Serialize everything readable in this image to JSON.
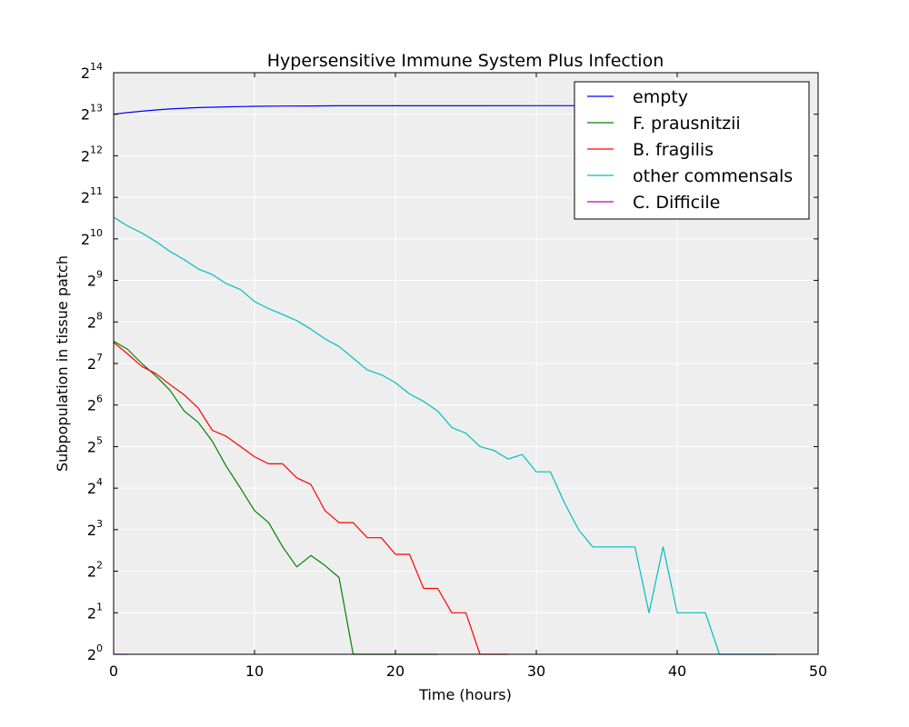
{
  "chart_data": {
    "type": "line",
    "title": "Hypersensitive Immune System Plus Infection",
    "xlabel": "Time (hours)",
    "ylabel": "Subpopulation in tissue patch",
    "xlim": [
      0,
      50
    ],
    "ylim_log2": [
      0,
      14
    ],
    "y_scale": "log2",
    "grid": true,
    "legend_position": "top-right",
    "x_ticks": [
      "0",
      "10",
      "20",
      "30",
      "40",
      "50"
    ],
    "y_ticks": [
      {
        "base": "2",
        "exp": "0"
      },
      {
        "base": "2",
        "exp": "1"
      },
      {
        "base": "2",
        "exp": "2"
      },
      {
        "base": "2",
        "exp": "3"
      },
      {
        "base": "2",
        "exp": "4"
      },
      {
        "base": "2",
        "exp": "5"
      },
      {
        "base": "2",
        "exp": "6"
      },
      {
        "base": "2",
        "exp": "7"
      },
      {
        "base": "2",
        "exp": "8"
      },
      {
        "base": "2",
        "exp": "9"
      },
      {
        "base": "2",
        "exp": "10"
      },
      {
        "base": "2",
        "exp": "11"
      },
      {
        "base": "2",
        "exp": "12"
      },
      {
        "base": "2",
        "exp": "13"
      },
      {
        "base": "2",
        "exp": "14"
      }
    ],
    "series": [
      {
        "name": "empty",
        "color": "#0000ff",
        "points": [
          [
            0,
            8192
          ],
          [
            1,
            8420
          ],
          [
            2,
            8620
          ],
          [
            3,
            8800
          ],
          [
            4,
            8950
          ],
          [
            5,
            9060
          ],
          [
            6,
            9150
          ],
          [
            7,
            9210
          ],
          [
            8,
            9270
          ],
          [
            9,
            9310
          ],
          [
            10,
            9350
          ],
          [
            12,
            9390
          ],
          [
            14,
            9410
          ],
          [
            16,
            9430
          ],
          [
            20,
            9440
          ],
          [
            30,
            9445
          ],
          [
            33,
            9445
          ]
        ]
      },
      {
        "name": "F. prausnitzii",
        "color": "#008000",
        "points": [
          [
            0,
            186
          ],
          [
            1,
            162
          ],
          [
            2,
            128
          ],
          [
            3,
            104
          ],
          [
            4,
            82
          ],
          [
            5,
            58
          ],
          [
            6,
            48
          ],
          [
            7,
            35
          ],
          [
            8,
            23
          ],
          [
            9,
            16
          ],
          [
            10,
            11
          ],
          [
            11,
            9
          ],
          [
            12,
            6
          ],
          [
            13,
            4.3
          ],
          [
            14,
            5.2
          ],
          [
            15,
            4.4
          ],
          [
            16,
            3.6
          ],
          [
            17,
            1
          ],
          [
            18,
            1
          ],
          [
            20,
            1
          ],
          [
            23,
            1
          ]
        ]
      },
      {
        "name": "B. fragilis",
        "color": "#ff0000",
        "points": [
          [
            0,
            182
          ],
          [
            1,
            150
          ],
          [
            2,
            122
          ],
          [
            3,
            108
          ],
          [
            4,
            90
          ],
          [
            5,
            76
          ],
          [
            6,
            61
          ],
          [
            7,
            42
          ],
          [
            8,
            38
          ],
          [
            9,
            32
          ],
          [
            10,
            27
          ],
          [
            11,
            24
          ],
          [
            12,
            24
          ],
          [
            13,
            19
          ],
          [
            14,
            17
          ],
          [
            15,
            11
          ],
          [
            16,
            9
          ],
          [
            17,
            9
          ],
          [
            18,
            7
          ],
          [
            19,
            7
          ],
          [
            20,
            5.3
          ],
          [
            21,
            5.3
          ],
          [
            22,
            3
          ],
          [
            23,
            3
          ],
          [
            24,
            2
          ],
          [
            25,
            2
          ],
          [
            26,
            1
          ],
          [
            27,
            1
          ],
          [
            28,
            1
          ]
        ]
      },
      {
        "name": "other commensals",
        "color": "#00bfbf",
        "points": [
          [
            0,
            1470
          ],
          [
            1,
            1270
          ],
          [
            2,
            1130
          ],
          [
            3,
            980
          ],
          [
            4,
            830
          ],
          [
            5,
            725
          ],
          [
            6,
            620
          ],
          [
            7,
            565
          ],
          [
            8,
            485
          ],
          [
            9,
            440
          ],
          [
            10,
            360
          ],
          [
            11,
            320
          ],
          [
            12,
            290
          ],
          [
            13,
            262
          ],
          [
            14,
            227
          ],
          [
            15,
            193
          ],
          [
            16,
            170
          ],
          [
            17,
            140
          ],
          [
            18,
            115
          ],
          [
            19,
            106
          ],
          [
            20,
            93
          ],
          [
            21,
            77
          ],
          [
            22,
            68
          ],
          [
            23,
            58
          ],
          [
            24,
            44
          ],
          [
            25,
            40
          ],
          [
            26,
            32
          ],
          [
            27,
            30
          ],
          [
            28,
            26
          ],
          [
            29,
            28
          ],
          [
            30,
            21
          ],
          [
            31,
            21
          ],
          [
            32,
            12.5
          ],
          [
            33,
            8
          ],
          [
            34,
            6
          ],
          [
            35,
            6
          ],
          [
            36,
            6
          ],
          [
            37,
            6
          ],
          [
            38,
            2
          ],
          [
            39,
            6
          ],
          [
            40,
            2
          ],
          [
            41,
            2
          ],
          [
            42,
            2
          ],
          [
            43,
            1
          ],
          [
            44,
            1
          ],
          [
            45,
            1
          ],
          [
            46,
            1
          ],
          [
            47,
            1
          ]
        ]
      },
      {
        "name": "C. Difficile",
        "color": "#bf00bf",
        "points": [
          [
            0,
            1
          ],
          [
            1,
            1
          ]
        ]
      }
    ]
  }
}
